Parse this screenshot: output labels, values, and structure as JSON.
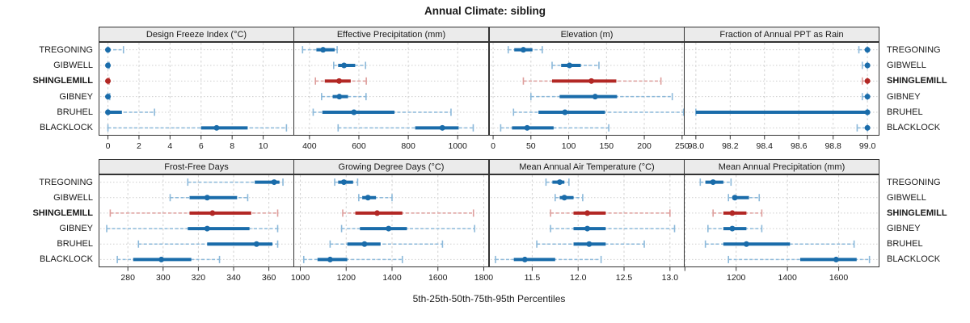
{
  "title": "Annual Climate: sibling",
  "caption": "5th-25th-50th-75th-95th Percentiles",
  "stations": [
    {
      "name": "TREGONING",
      "highlight": false
    },
    {
      "name": "GIBWELL",
      "highlight": false
    },
    {
      "name": "SHINGLEMILL",
      "highlight": true
    },
    {
      "name": "GIBNEY",
      "highlight": false
    },
    {
      "name": "BRUHEL",
      "highlight": false
    },
    {
      "name": "BLACKLOCK",
      "highlight": false
    }
  ],
  "colors": {
    "normal": "#1a6caa",
    "normal_light": "#8cb9da",
    "highlight": "#b22724",
    "highlight_light": "#de9e9c",
    "grid": "#d2d2d2",
    "row_grid": "#cfcfcf",
    "border": "#333333",
    "strip_bg": "#ebebeb",
    "text": "#1a1a1a"
  },
  "chart_data": {
    "type": "dot-whisker",
    "note": "5th-25th-50th-75th-95th percentile ranges per station; dot = median",
    "percentile_levels": [
      5,
      25,
      50,
      75,
      95
    ],
    "station_order": [
      "TREGONING",
      "GIBWELL",
      "SHINGLEMILL",
      "GIBNEY",
      "BRUHEL",
      "BLACKLOCK"
    ],
    "panels": [
      {
        "label": "Design Freeze Index (°C)",
        "row": 0,
        "col": 0,
        "xmin": -0.6,
        "xmax": 12.0,
        "ticks": [
          {
            "v": 0,
            "t": "0"
          },
          {
            "v": 2,
            "t": "2"
          },
          {
            "v": 4,
            "t": "4"
          },
          {
            "v": 6,
            "t": "6"
          },
          {
            "v": 8,
            "t": "8"
          },
          {
            "v": 10,
            "t": "10"
          }
        ],
        "series": [
          [
            0,
            0,
            0,
            0.15,
            1
          ],
          [
            0,
            0,
            0,
            0,
            0.08
          ],
          [
            0,
            0,
            0,
            0,
            0.08
          ],
          [
            0,
            0,
            0,
            0,
            0.12
          ],
          [
            0,
            0,
            0,
            0.9,
            3
          ],
          [
            0,
            6,
            7,
            9,
            11.5
          ]
        ]
      },
      {
        "label": "Effective Precipitation (mm)",
        "row": 0,
        "col": 1,
        "xmin": 335,
        "xmax": 1127,
        "ticks": [
          {
            "v": 400,
            "t": "400"
          },
          {
            "v": 600,
            "t": "600"
          },
          {
            "v": 800,
            "t": "800"
          },
          {
            "v": 1000,
            "t": "1000"
          }
        ],
        "series": [
          [
            372,
            428,
            455,
            502,
            512
          ],
          [
            498,
            516,
            540,
            585,
            627
          ],
          [
            424,
            462,
            520,
            567,
            630
          ],
          [
            449,
            494,
            521,
            556,
            629
          ],
          [
            415,
            452,
            580,
            744,
            973
          ],
          [
            516,
            828,
            938,
            1004,
            1063
          ]
        ]
      },
      {
        "label": "Elevation (m)",
        "row": 0,
        "col": 2,
        "xmin": -5.4,
        "xmax": 253.4,
        "ticks": [
          {
            "v": 0,
            "t": "0"
          },
          {
            "v": 50,
            "t": "50"
          },
          {
            "v": 100,
            "t": "100"
          },
          {
            "v": 150,
            "t": "150"
          },
          {
            "v": 200,
            "t": "200"
          },
          {
            "v": 250,
            "t": "250"
          }
        ],
        "series": [
          [
            20,
            28,
            40,
            52,
            65
          ],
          [
            78,
            90,
            101,
            116,
            140
          ],
          [
            40,
            78,
            130,
            163,
            222
          ],
          [
            50,
            88,
            135,
            164,
            237
          ],
          [
            27,
            60,
            95,
            148,
            252
          ],
          [
            10,
            25,
            45,
            80,
            153
          ]
        ]
      },
      {
        "label": "Fraction of Annual PPT as Rain",
        "row": 0,
        "col": 3,
        "xmin": 97.93,
        "xmax": 99.07,
        "ticks": [
          {
            "v": 98.0,
            "t": "98.0"
          },
          {
            "v": 98.2,
            "t": "98.2"
          },
          {
            "v": 98.4,
            "t": "98.4"
          },
          {
            "v": 98.6,
            "t": "98.6"
          },
          {
            "v": 98.8,
            "t": "98.8"
          },
          {
            "v": 99.0,
            "t": "99.0"
          }
        ],
        "series": [
          [
            98.95,
            98.99,
            99,
            99,
            99
          ],
          [
            98.97,
            99,
            99,
            99,
            99
          ],
          [
            98.97,
            99,
            99,
            99,
            99
          ],
          [
            98.97,
            99,
            99,
            99,
            99
          ],
          [
            98.0,
            98.0,
            99,
            99,
            99
          ],
          [
            98.94,
            98.99,
            99,
            99,
            99
          ]
        ]
      },
      {
        "label": "Frost-Free Days",
        "row": 1,
        "col": 0,
        "xmin": 263.4,
        "xmax": 374.4,
        "ticks": [
          {
            "v": 280,
            "t": "280"
          },
          {
            "v": 300,
            "t": "300"
          },
          {
            "v": 320,
            "t": "320"
          },
          {
            "v": 340,
            "t": "340"
          },
          {
            "v": 360,
            "t": "360"
          }
        ],
        "series": [
          [
            314,
            352,
            363,
            366,
            368
          ],
          [
            304,
            315,
            325,
            342,
            348
          ],
          [
            270,
            315,
            328,
            350,
            365
          ],
          [
            268,
            314,
            325,
            349,
            365
          ],
          [
            286,
            325,
            353,
            362,
            365
          ],
          [
            274,
            283,
            299,
            316,
            332
          ]
        ]
      },
      {
        "label": "Growing Degree Days (°C)",
        "row": 1,
        "col": 1,
        "xmin": 970,
        "xmax": 1823,
        "ticks": [
          {
            "v": 1000,
            "t": "1000"
          },
          {
            "v": 1200,
            "t": "1200"
          },
          {
            "v": 1400,
            "t": "1400"
          },
          {
            "v": 1600,
            "t": "1600"
          },
          {
            "v": 1800,
            "t": "1800"
          }
        ],
        "series": [
          [
            1150,
            1165,
            1190,
            1230,
            1250
          ],
          [
            1255,
            1270,
            1295,
            1330,
            1400
          ],
          [
            1185,
            1240,
            1335,
            1445,
            1755
          ],
          [
            1180,
            1260,
            1385,
            1465,
            1760
          ],
          [
            1130,
            1205,
            1280,
            1350,
            1620
          ],
          [
            1015,
            1075,
            1130,
            1205,
            1445
          ]
        ]
      },
      {
        "label": "Mean Annual Air Temperature (°C)",
        "row": 1,
        "col": 2,
        "xmin": 11.03,
        "xmax": 13.16,
        "ticks": [
          {
            "v": 11.5,
            "t": "11.5"
          },
          {
            "v": 12.0,
            "t": "12.0"
          },
          {
            "v": 12.5,
            "t": "12.5"
          },
          {
            "v": 13.0,
            "t": "13.0"
          }
        ],
        "series": [
          [
            11.65,
            11.72,
            11.8,
            11.85,
            11.9
          ],
          [
            11.75,
            11.8,
            11.85,
            11.95,
            12.05
          ],
          [
            11.7,
            11.95,
            12.1,
            12.3,
            13.0
          ],
          [
            11.7,
            11.95,
            12.1,
            12.3,
            13.05
          ],
          [
            11.55,
            11.95,
            12.12,
            12.3,
            12.72
          ],
          [
            11.1,
            11.3,
            11.42,
            11.75,
            12.25
          ]
        ]
      },
      {
        "label": "Mean Annual Precipitation (mm)",
        "row": 1,
        "col": 3,
        "xmin": 996,
        "xmax": 1759,
        "ticks": [
          {
            "v": 1000,
            "t": ""
          },
          {
            "v": 1200,
            "t": "1200"
          },
          {
            "v": 1400,
            "t": "1400"
          },
          {
            "v": 1600,
            "t": "1600"
          }
        ],
        "series": [
          [
            1060,
            1080,
            1110,
            1150,
            1180
          ],
          [
            1170,
            1185,
            1195,
            1250,
            1290
          ],
          [
            1110,
            1150,
            1185,
            1240,
            1300
          ],
          [
            1090,
            1150,
            1185,
            1240,
            1300
          ],
          [
            1080,
            1150,
            1240,
            1410,
            1660
          ],
          [
            1170,
            1450,
            1590,
            1670,
            1720
          ]
        ]
      }
    ]
  }
}
